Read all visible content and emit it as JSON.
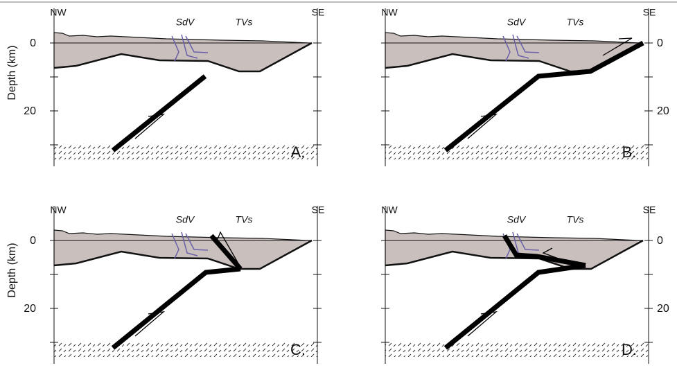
{
  "axis_label": "Depth (km)",
  "panels": [
    {
      "nw": "NW",
      "se": "SE",
      "sdv": "SdV",
      "tvs": "TVs",
      "letter": "A.",
      "ticks": [
        "0",
        "20"
      ]
    },
    {
      "nw": "NW",
      "se": "SE",
      "sdv": "SdV",
      "tvs": "TVs",
      "letter": "B.",
      "ticks": [
        "0",
        "20"
      ]
    },
    {
      "nw": "NW",
      "se": "SE",
      "sdv": "SdV",
      "tvs": "TVs",
      "letter": "C.",
      "ticks": [
        "0",
        "20"
      ]
    },
    {
      "nw": "NW",
      "se": "SE",
      "sdv": "SdV",
      "tvs": "TVs",
      "letter": "D.",
      "ticks": [
        "0",
        "20"
      ]
    }
  ]
}
